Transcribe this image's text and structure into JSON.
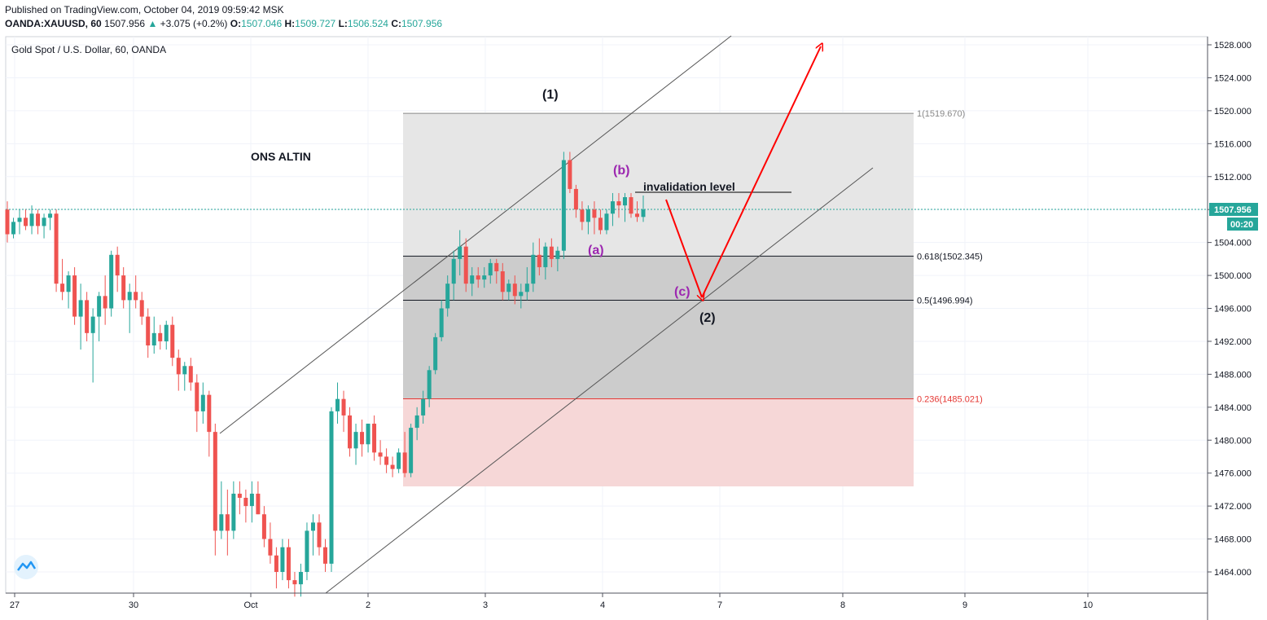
{
  "header": {
    "published": "Published on TradingView.com, October 04, 2019 09:59:42 MSK",
    "symbol": "OANDA:XAUUSD, 60",
    "last": "1507.956",
    "change_arrow": "▲",
    "change": "+3.075 (+0.2%)",
    "o_label": "O:",
    "o_value": "1507.046",
    "h_label": "H:",
    "h_value": "1509.727",
    "l_label": "L:",
    "l_value": "1506.524",
    "c_label": "C:",
    "c_value": "1507.956"
  },
  "legend": {
    "title": "Gold Spot / U.S. Dollar, 60, OANDA"
  },
  "colors": {
    "up": "#26a69a",
    "down": "#ef5350",
    "arrow": "#ff0000",
    "wave_label": "#9c27b0",
    "fib_red": "#e53935",
    "price_tag": "#26a69a"
  },
  "annotations": {
    "title": "ONS ALTIN",
    "wave1": "(1)",
    "wave2": "(2)",
    "wave_a": "(a)",
    "wave_b": "(b)",
    "wave_c": "(c)",
    "invalidation": "invalidation level"
  },
  "price_tag": {
    "price": "1507.956",
    "timer": "00:20"
  },
  "chart_data": {
    "type": "candlestick",
    "title": "Gold Spot / U.S. Dollar, 60, OANDA",
    "ylim": [
      1462,
      1530
    ],
    "y_ticks": [
      "1528.000",
      "1524.000",
      "1520.000",
      "1516.000",
      "1512.000",
      "1508.000",
      "1504.000",
      "1500.000",
      "1496.000",
      "1492.000",
      "1488.000",
      "1484.000",
      "1480.000",
      "1476.000",
      "1472.000",
      "1468.000",
      "1464.000"
    ],
    "x_ticks": [
      "27",
      "30",
      "Oct",
      "2",
      "3",
      "4",
      "7",
      "8",
      "9",
      "10"
    ],
    "last_price": 1507.956,
    "fib_levels": [
      {
        "label": "1(1519.670)",
        "value": 1519.67
      },
      {
        "label": "0.618(1502.345)",
        "value": 1502.345
      },
      {
        "label": "0.5(1496.994)",
        "value": 1496.994
      },
      {
        "label": "0.236(1485.021)",
        "value": 1485.021
      }
    ],
    "candles": [
      [
        1508,
        1509,
        1504,
        1505
      ],
      [
        1505,
        1507,
        1504.5,
        1506.5
      ],
      [
        1506.5,
        1508,
        1505,
        1507
      ],
      [
        1507,
        1508,
        1505.5,
        1506
      ],
      [
        1506,
        1508.5,
        1505,
        1507.5
      ],
      [
        1507.5,
        1508,
        1505,
        1506
      ],
      [
        1506,
        1507.5,
        1504.5,
        1507
      ],
      [
        1507,
        1508,
        1505.5,
        1507.5
      ],
      [
        1507.5,
        1508,
        1498,
        1499
      ],
      [
        1499,
        1502,
        1497,
        1498
      ],
      [
        1498,
        1500.5,
        1496,
        1500
      ],
      [
        1500,
        1501,
        1494,
        1495
      ],
      [
        1495,
        1499,
        1491,
        1497
      ],
      [
        1497,
        1498,
        1492,
        1493
      ],
      [
        1493,
        1496,
        1487,
        1495
      ],
      [
        1495,
        1498,
        1492,
        1497.5
      ],
      [
        1497.5,
        1500,
        1494,
        1496
      ],
      [
        1496,
        1503,
        1495,
        1502.5
      ],
      [
        1502.5,
        1503.5,
        1498,
        1500
      ],
      [
        1500,
        1501,
        1496,
        1497
      ],
      [
        1497,
        1499,
        1493,
        1498
      ],
      [
        1498,
        1500,
        1496,
        1497
      ],
      [
        1497,
        1498,
        1494,
        1495
      ],
      [
        1495,
        1496,
        1490,
        1491.5
      ],
      [
        1491.5,
        1495,
        1490.5,
        1493
      ],
      [
        1493,
        1494,
        1491,
        1492
      ],
      [
        1492,
        1494.5,
        1491,
        1494
      ],
      [
        1494,
        1495,
        1489,
        1490
      ],
      [
        1490,
        1491,
        1486,
        1488
      ],
      [
        1488,
        1489.5,
        1486,
        1489
      ],
      [
        1489,
        1490,
        1486,
        1487
      ],
      [
        1487,
        1488,
        1481,
        1483.5
      ],
      [
        1483.5,
        1487,
        1482,
        1485.5
      ],
      [
        1485.5,
        1486,
        1478,
        1481
      ],
      [
        1481,
        1482,
        1466,
        1469
      ],
      [
        1469,
        1475,
        1468,
        1471
      ],
      [
        1471,
        1474,
        1466,
        1469
      ],
      [
        1469,
        1475,
        1468,
        1473.5
      ],
      [
        1473.5,
        1475,
        1471,
        1473
      ],
      [
        1473,
        1474,
        1470,
        1472
      ],
      [
        1472,
        1475,
        1470,
        1473.5
      ],
      [
        1473.5,
        1475,
        1471,
        1471
      ],
      [
        1471,
        1472,
        1467,
        1468
      ],
      [
        1468,
        1470,
        1465,
        1466
      ],
      [
        1466,
        1467,
        1462,
        1464
      ],
      [
        1464,
        1468,
        1463,
        1467
      ],
      [
        1467,
        1468,
        1462,
        1463
      ],
      [
        1463,
        1464,
        1461,
        1462.5
      ],
      [
        1462.5,
        1465,
        1461,
        1464
      ],
      [
        1464,
        1470,
        1463,
        1469
      ],
      [
        1469,
        1471,
        1466,
        1470
      ],
      [
        1470,
        1471,
        1466,
        1467
      ],
      [
        1467,
        1468,
        1464,
        1465
      ],
      [
        1465,
        1484,
        1464,
        1483.5
      ],
      [
        1483.5,
        1487,
        1482,
        1485
      ],
      [
        1485,
        1486,
        1481,
        1483
      ],
      [
        1483,
        1484,
        1478,
        1479
      ],
      [
        1479,
        1482,
        1477,
        1481
      ],
      [
        1481,
        1482.5,
        1478,
        1479.5
      ],
      [
        1479.5,
        1482,
        1478.5,
        1482
      ],
      [
        1482,
        1483,
        1477.5,
        1478.5
      ],
      [
        1478.5,
        1480,
        1477,
        1478
      ],
      [
        1478,
        1479,
        1476,
        1477
      ],
      [
        1477,
        1478,
        1475.5,
        1476.5
      ],
      [
        1476.5,
        1479,
        1476,
        1478.5
      ],
      [
        1478.5,
        1481,
        1475.5,
        1476
      ],
      [
        1476,
        1482,
        1475.5,
        1481.5
      ],
      [
        1481.5,
        1484,
        1480,
        1483
      ],
      [
        1483,
        1486,
        1482,
        1485
      ],
      [
        1485,
        1489,
        1484,
        1488.5
      ],
      [
        1488.5,
        1493,
        1488,
        1492.5
      ],
      [
        1492.5,
        1497,
        1492,
        1496
      ],
      [
        1496,
        1500,
        1495,
        1499
      ],
      [
        1499,
        1503,
        1497,
        1502
      ],
      [
        1502,
        1505.5,
        1500,
        1503.5
      ],
      [
        1503.5,
        1504.5,
        1498,
        1499
      ],
      [
        1499,
        1501,
        1497.5,
        1500
      ],
      [
        1500,
        1501,
        1498.5,
        1499.5
      ],
      [
        1499.5,
        1501,
        1498.5,
        1500
      ],
      [
        1500,
        1502,
        1499,
        1501.5
      ],
      [
        1501.5,
        1502,
        1499,
        1500.5
      ],
      [
        1500.5,
        1501.5,
        1497,
        1498
      ],
      [
        1498,
        1499.5,
        1497,
        1499
      ],
      [
        1499,
        1500,
        1496.5,
        1497.5
      ],
      [
        1497.5,
        1499,
        1496,
        1498
      ],
      [
        1498,
        1501,
        1497,
        1499
      ],
      [
        1499,
        1504,
        1498,
        1502.5
      ],
      [
        1502.5,
        1504.5,
        1500,
        1501
      ],
      [
        1501,
        1504,
        1499.5,
        1503.5
      ],
      [
        1503.5,
        1504.5,
        1501,
        1502
      ],
      [
        1502,
        1503.5,
        1500.5,
        1503
      ],
      [
        1503,
        1515,
        1502,
        1514
      ],
      [
        1514,
        1515,
        1510,
        1510.5
      ],
      [
        1510.5,
        1511,
        1507,
        1508
      ],
      [
        1508,
        1509,
        1505.5,
        1506.5
      ],
      [
        1506.5,
        1508.5,
        1505,
        1508
      ],
      [
        1508,
        1509,
        1505,
        1507
      ],
      [
        1507,
        1508,
        1505,
        1505.5
      ],
      [
        1505.5,
        1508,
        1505,
        1507.5
      ],
      [
        1507.5,
        1510,
        1506,
        1509
      ],
      [
        1509,
        1510,
        1507,
        1508.5
      ],
      [
        1508.5,
        1510,
        1506.5,
        1509.5
      ],
      [
        1509.5,
        1510,
        1507,
        1507.5
      ],
      [
        1507.5,
        1509,
        1506.5,
        1507.1
      ],
      [
        1507.1,
        1509.7,
        1506.5,
        1508
      ]
    ]
  }
}
